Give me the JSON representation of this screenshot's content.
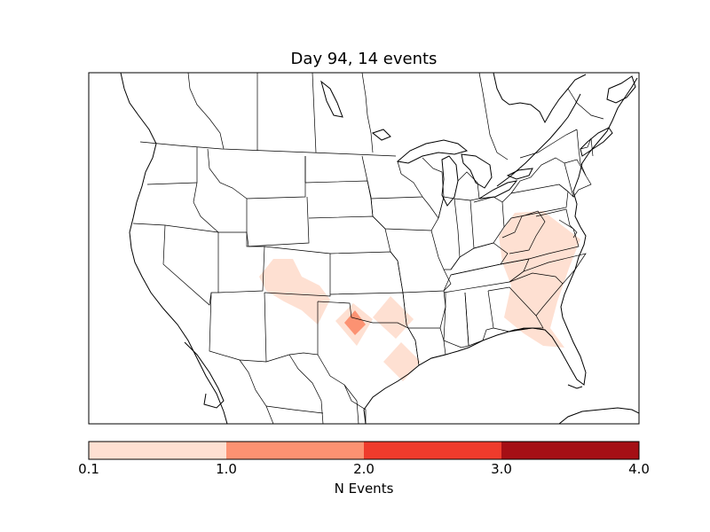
{
  "title": "Day 94, 14 events",
  "colorbar": {
    "label": "N Events",
    "ticks": [
      "0.1",
      "1.0",
      "2.0",
      "3.0",
      "4.0"
    ],
    "bins": [
      {
        "from": 0.1,
        "to": 1.0,
        "color": "#fee0d2"
      },
      {
        "from": 1.0,
        "to": 2.0,
        "color": "#fc9272"
      },
      {
        "from": 2.0,
        "to": 3.0,
        "color": "#ef3b2c"
      },
      {
        "from": 3.0,
        "to": 4.0,
        "color": "#a50f15"
      }
    ]
  },
  "map_data": {
    "type": "choropleth-grid",
    "region": "North America (contiguous US)",
    "event_regions": [
      {
        "name": "colorado-new-mexico-area",
        "n_events": 0.5
      },
      {
        "name": "north-texas-area",
        "n_events": 0.5
      },
      {
        "name": "north-texas-peak",
        "n_events": 1.5
      },
      {
        "name": "east-texas-area",
        "n_events": 0.5
      },
      {
        "name": "gulf-coast-texas-area",
        "n_events": 0.5
      },
      {
        "name": "southeast-atlantic-area",
        "n_events": 0.5
      }
    ]
  }
}
